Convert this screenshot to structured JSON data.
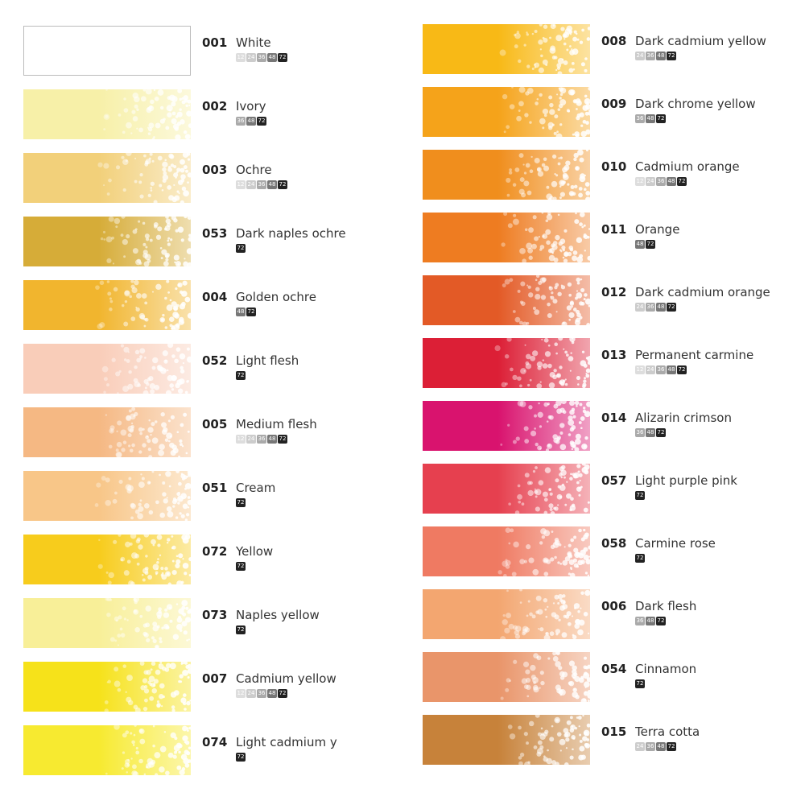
{
  "sizes": [
    "12",
    "24",
    "36",
    "48",
    "72"
  ],
  "left": [
    {
      "code": "001",
      "name": "White",
      "color": "#ffffff",
      "sets": [
        "12",
        "24",
        "36",
        "48",
        "72"
      ]
    },
    {
      "code": "002",
      "name": "Ivory",
      "color": "#f7f0a8",
      "sets": [
        "36",
        "48",
        "72"
      ]
    },
    {
      "code": "003",
      "name": "Ochre",
      "color": "#f2d07a",
      "sets": [
        "12",
        "24",
        "36",
        "48",
        "72"
      ]
    },
    {
      "code": "053",
      "name": "Dark naples ochre",
      "color": "#d6ac38",
      "sets": [
        "72"
      ]
    },
    {
      "code": "004",
      "name": "Golden ochre",
      "color": "#f1b52e",
      "sets": [
        "48",
        "72"
      ]
    },
    {
      "code": "052",
      "name": "Light flesh",
      "color": "#f9cdb9",
      "sets": [
        "72"
      ]
    },
    {
      "code": "005",
      "name": "Medium flesh",
      "color": "#f5b883",
      "sets": [
        "12",
        "24",
        "36",
        "48",
        "72"
      ]
    },
    {
      "code": "051",
      "name": "Cream",
      "color": "#f8c688",
      "sets": [
        "72"
      ]
    },
    {
      "code": "072",
      "name": "Yellow",
      "color": "#f7cc1c",
      "sets": [
        "72"
      ]
    },
    {
      "code": "073",
      "name": "Naples yellow",
      "color": "#f8ef98",
      "sets": [
        "72"
      ]
    },
    {
      "code": "007",
      "name": "Cadmium yellow",
      "color": "#f6e21a",
      "sets": [
        "12",
        "24",
        "36",
        "48",
        "72"
      ]
    },
    {
      "code": "074",
      "name": "Light cadmium y",
      "color": "#f7ea30",
      "sets": [
        "72"
      ]
    }
  ],
  "right": [
    {
      "code": "008",
      "name": "Dark cadmium yellow",
      "color": "#f8b916",
      "sets": [
        "24",
        "36",
        "48",
        "72"
      ]
    },
    {
      "code": "009",
      "name": "Dark chrome yellow",
      "color": "#f5a31a",
      "sets": [
        "36",
        "48",
        "72"
      ]
    },
    {
      "code": "010",
      "name": "Cadmium orange",
      "color": "#f08e1d",
      "sets": [
        "12",
        "24",
        "36",
        "48",
        "72"
      ]
    },
    {
      "code": "011",
      "name": "Orange",
      "color": "#ee7c21",
      "sets": [
        "48",
        "72"
      ]
    },
    {
      "code": "012",
      "name": "Dark cadmium orange",
      "color": "#e35a26",
      "sets": [
        "24",
        "36",
        "48",
        "72"
      ]
    },
    {
      "code": "013",
      "name": "Permanent carmine",
      "color": "#dc1f36",
      "sets": [
        "12",
        "24",
        "36",
        "48",
        "72"
      ]
    },
    {
      "code": "014",
      "name": "Alizarin crimson",
      "color": "#d9136e",
      "sets": [
        "36",
        "48",
        "72"
      ]
    },
    {
      "code": "057",
      "name": "Light  purple pink",
      "color": "#e6404f",
      "sets": [
        "72"
      ]
    },
    {
      "code": "058",
      "name": "Carmine rose",
      "color": "#ef7a62",
      "sets": [
        "72"
      ]
    },
    {
      "code": "006",
      "name": "Dark flesh",
      "color": "#f3a670",
      "sets": [
        "36",
        "48",
        "72"
      ]
    },
    {
      "code": "054",
      "name": "Cinnamon",
      "color": "#e9956a",
      "sets": [
        "72"
      ]
    },
    {
      "code": "015",
      "name": "Terra cotta",
      "color": "#c7823a",
      "sets": [
        "24",
        "36",
        "48",
        "72"
      ]
    }
  ]
}
